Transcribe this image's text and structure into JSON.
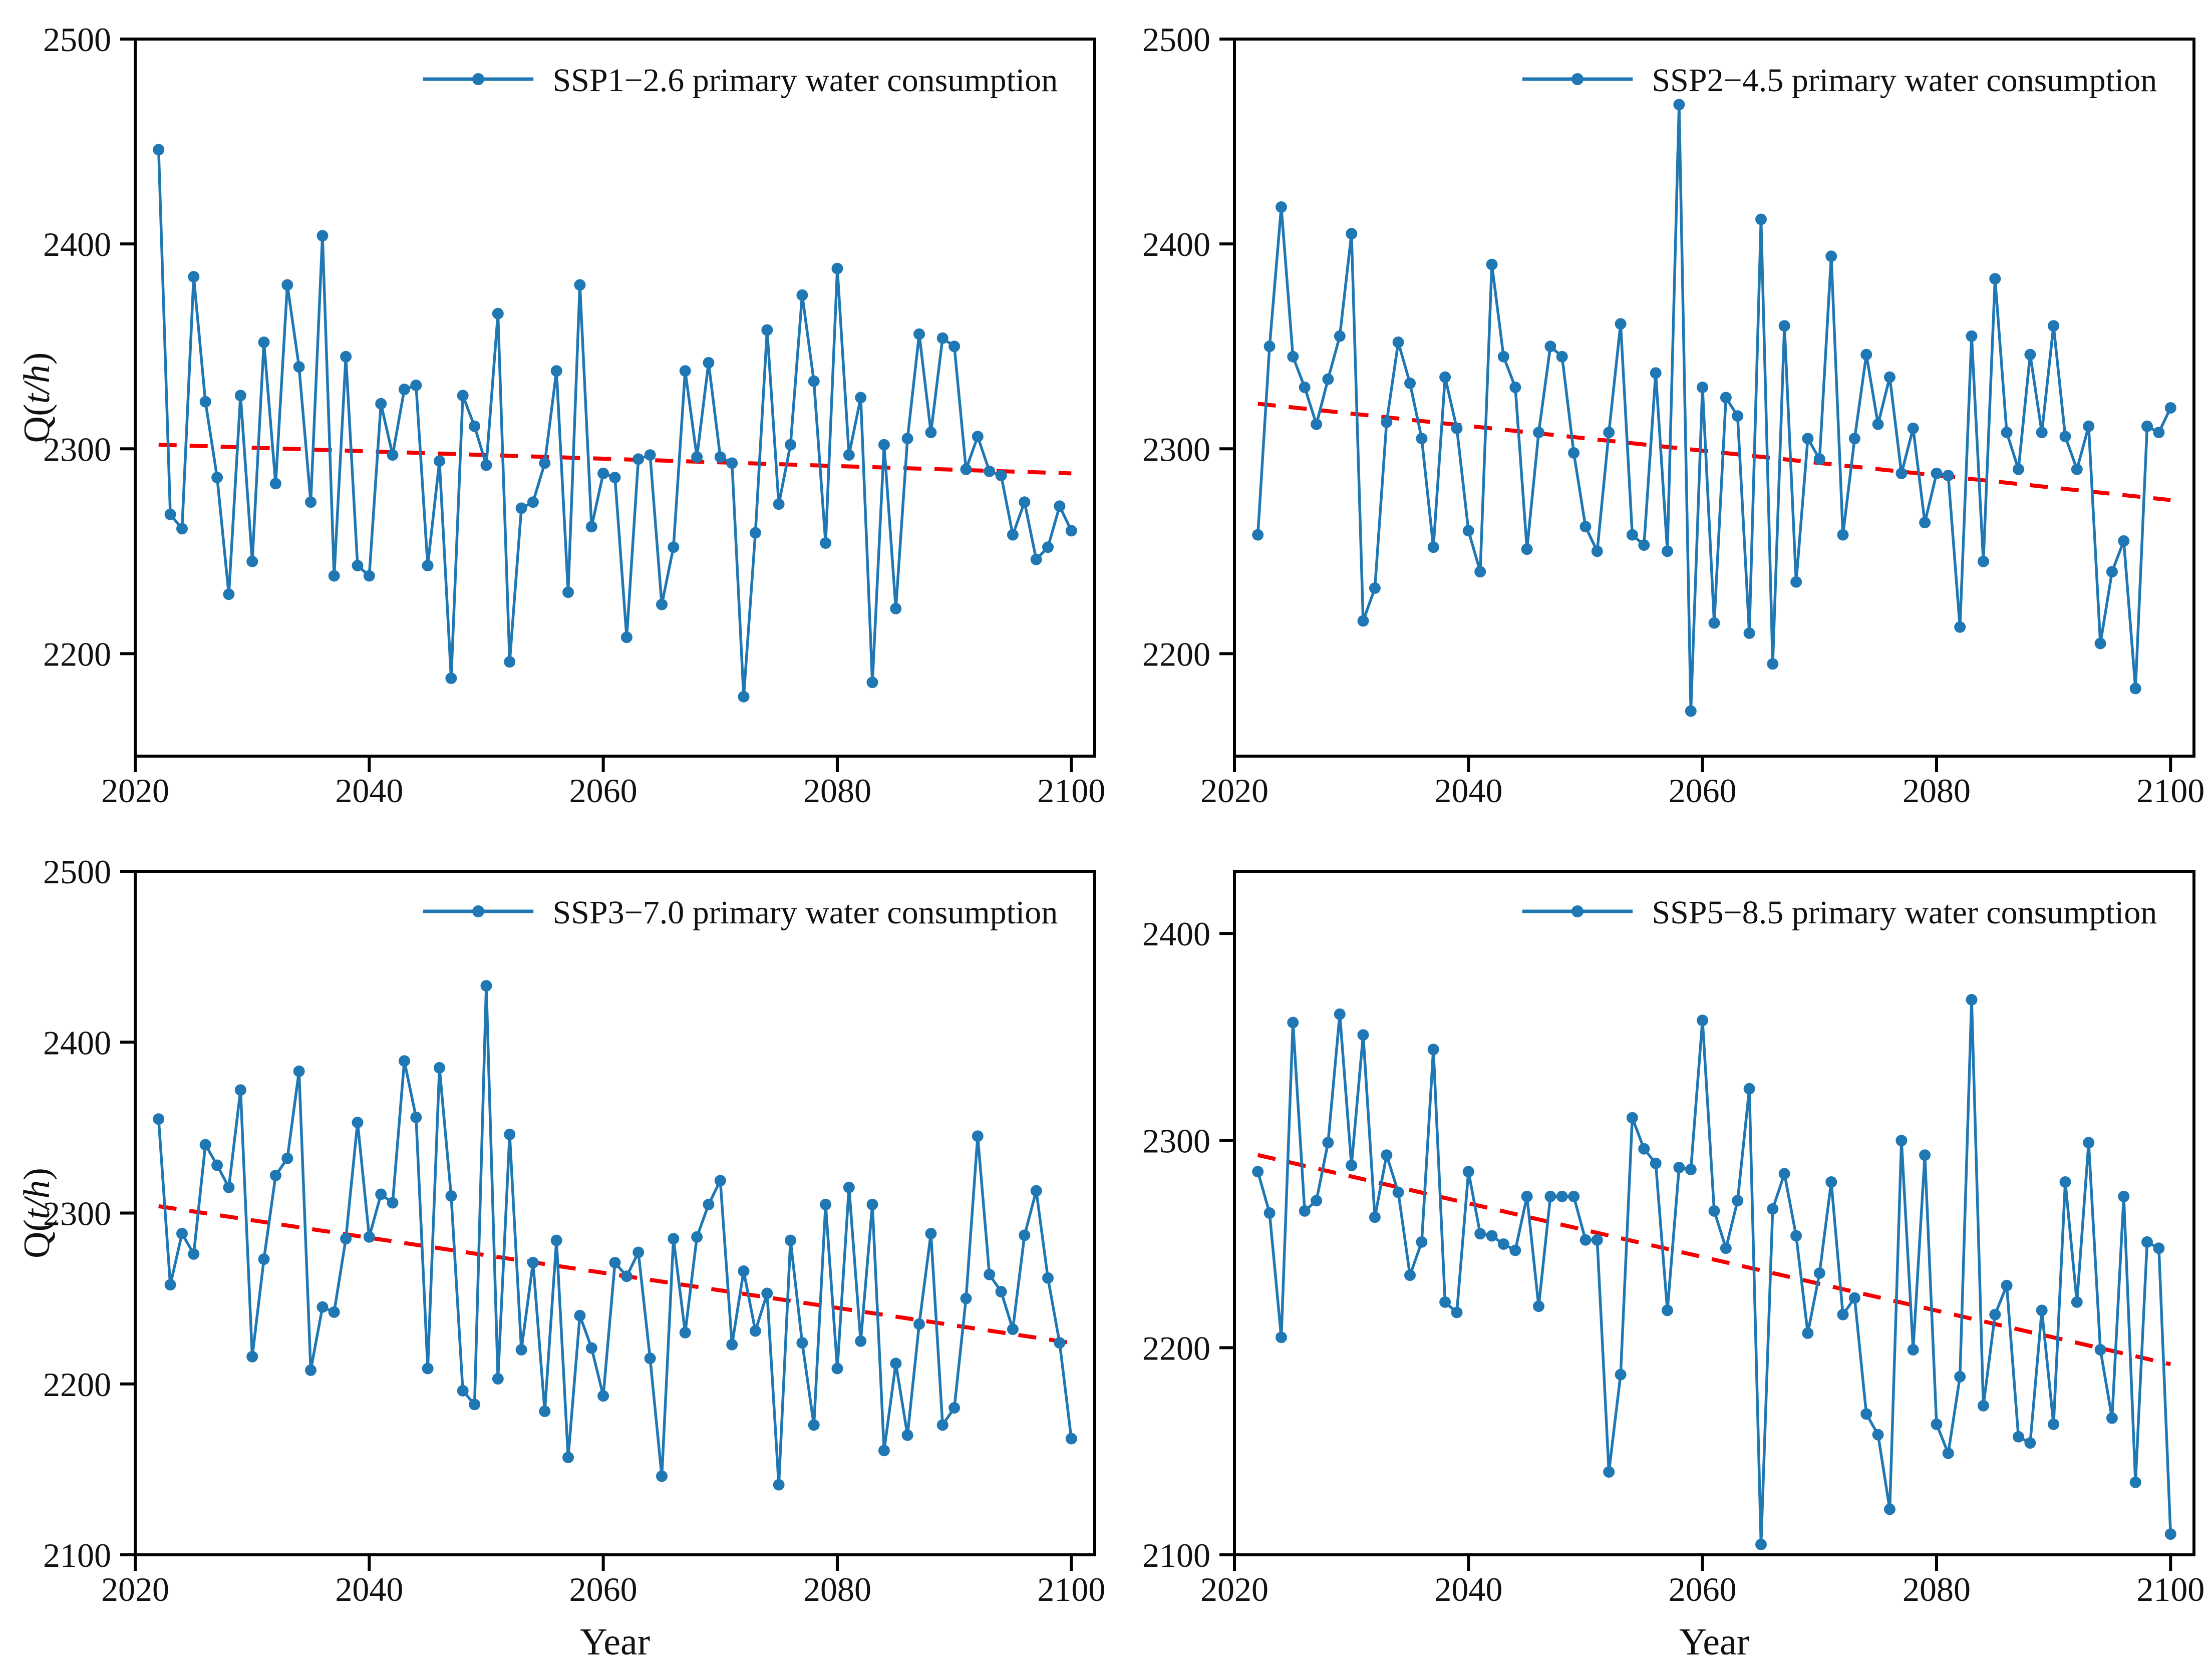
{
  "figure": {
    "background": "#ffffff",
    "series_color": "#1f77b4",
    "trend_color": "#f40000",
    "axis_color": "#000000",
    "text_color": "#111111"
  },
  "chart_data": {
    "type": "line",
    "title": "",
    "xlabel": "Year",
    "ylabel": "Q(t/h)",
    "ylabel_plain": "Q(t/h)",
    "x_ticks": [
      2020,
      2040,
      2060,
      2080,
      2100
    ],
    "xlim": [
      2020,
      2102
    ],
    "grid": false,
    "legend_position": "top-right-inside",
    "marker": "circle",
    "trend_style": "dashed",
    "x": [
      2022,
      2023,
      2024,
      2025,
      2026,
      2027,
      2028,
      2029,
      2030,
      2031,
      2032,
      2033,
      2034,
      2035,
      2036,
      2037,
      2038,
      2039,
      2040,
      2041,
      2042,
      2043,
      2044,
      2045,
      2046,
      2047,
      2048,
      2049,
      2050,
      2051,
      2052,
      2053,
      2054,
      2055,
      2056,
      2057,
      2058,
      2059,
      2060,
      2061,
      2062,
      2063,
      2064,
      2065,
      2066,
      2067,
      2068,
      2069,
      2070,
      2071,
      2072,
      2073,
      2074,
      2075,
      2076,
      2077,
      2078,
      2079,
      2080,
      2081,
      2082,
      2083,
      2084,
      2085,
      2086,
      2087,
      2088,
      2089,
      2090,
      2091,
      2092,
      2093,
      2094,
      2095,
      2096,
      2097,
      2098,
      2099,
      2100
    ],
    "panels": [
      {
        "id": "ssp1-26",
        "legend": "SSP1−2.6 primary water consumption",
        "ylim": [
          2150,
          2500
        ],
        "y_ticks": [
          2200,
          2300,
          2400,
          2500
        ],
        "show_ylabel": true,
        "show_xlabel": false,
        "trend": {
          "start_year": 2022,
          "end_year": 2100,
          "start_value": 2302,
          "end_value": 2288
        },
        "values": [
          2446,
          2268,
          2261,
          2384,
          2323,
          2286,
          2229,
          2326,
          2245,
          2352,
          2283,
          2380,
          2340,
          2274,
          2404,
          2238,
          2345,
          2243,
          2238,
          2322,
          2297,
          2329,
          2331,
          2243,
          2294,
          2188,
          2326,
          2311,
          2292,
          2366,
          2196,
          2271,
          2274,
          2293,
          2338,
          2230,
          2380,
          2262,
          2288,
          2286,
          2208,
          2295,
          2297,
          2224,
          2252,
          2338,
          2296,
          2342,
          2296,
          2293,
          2179,
          2259,
          2358,
          2273,
          2302,
          2375,
          2333,
          2254,
          2388,
          2297,
          2325,
          2186,
          2302,
          2222,
          2305,
          2356,
          2308,
          2354,
          2350,
          2290,
          2306,
          2289,
          2287,
          2258,
          2274,
          2246,
          2252,
          2272,
          2260
        ]
      },
      {
        "id": "ssp2-45",
        "legend": "SSP2−4.5 primary water consumption",
        "ylim": [
          2150,
          2500
        ],
        "y_ticks": [
          2200,
          2300,
          2400,
          2500
        ],
        "show_ylabel": false,
        "show_xlabel": false,
        "trend": {
          "start_year": 2022,
          "end_year": 2100,
          "start_value": 2322,
          "end_value": 2275
        },
        "values": [
          2258,
          2350,
          2418,
          2345,
          2330,
          2312,
          2334,
          2355,
          2405,
          2216,
          2232,
          2313,
          2352,
          2332,
          2305,
          2252,
          2335,
          2310,
          2260,
          2240,
          2390,
          2345,
          2330,
          2251,
          2308,
          2350,
          2345,
          2298,
          2262,
          2250,
          2308,
          2361,
          2258,
          2253,
          2337,
          2250,
          2468,
          2172,
          2330,
          2215,
          2325,
          2316,
          2210,
          2412,
          2195,
          2360,
          2235,
          2305,
          2295,
          2394,
          2258,
          2305,
          2346,
          2312,
          2335,
          2288,
          2310,
          2264,
          2288,
          2287,
          2213,
          2355,
          2245,
          2383,
          2308,
          2290,
          2346,
          2308,
          2360,
          2306,
          2290,
          2311,
          2205,
          2240,
          2255,
          2183,
          2311,
          2308,
          2320
        ]
      },
      {
        "id": "ssp3-70",
        "legend": "SSP3−7.0 primary water consumption",
        "ylim": [
          2100,
          2500
        ],
        "y_ticks": [
          2100,
          2200,
          2300,
          2400,
          2500
        ],
        "show_ylabel": true,
        "show_xlabel": true,
        "trend": {
          "start_year": 2022,
          "end_year": 2100,
          "start_value": 2304,
          "end_value": 2224
        },
        "values": [
          2355,
          2258,
          2288,
          2276,
          2340,
          2328,
          2315,
          2372,
          2216,
          2273,
          2322,
          2332,
          2383,
          2208,
          2245,
          2242,
          2285,
          2353,
          2286,
          2311,
          2306,
          2389,
          2356,
          2209,
          2385,
          2310,
          2196,
          2188,
          2433,
          2203,
          2346,
          2220,
          2271,
          2184,
          2284,
          2157,
          2240,
          2221,
          2193,
          2271,
          2263,
          2277,
          2215,
          2146,
          2285,
          2230,
          2286,
          2305,
          2319,
          2223,
          2266,
          2231,
          2253,
          2141,
          2284,
          2224,
          2176,
          2305,
          2209,
          2315,
          2225,
          2305,
          2161,
          2212,
          2170,
          2235,
          2288,
          2176,
          2186,
          2250,
          2345,
          2264,
          2254,
          2232,
          2287,
          2313,
          2262,
          2224,
          2168
        ]
      },
      {
        "id": "ssp5-85",
        "legend": "SSP5−8.5 primary water consumption",
        "ylim": [
          2100,
          2430
        ],
        "y_ticks": [
          2100,
          2200,
          2300,
          2400
        ],
        "show_ylabel": false,
        "show_xlabel": true,
        "trend": {
          "start_year": 2022,
          "end_year": 2100,
          "start_value": 2293,
          "end_value": 2192
        },
        "values": [
          2285,
          2265,
          2205,
          2357,
          2266,
          2271,
          2299,
          2361,
          2288,
          2351,
          2263,
          2293,
          2275,
          2235,
          2251,
          2344,
          2222,
          2217,
          2285,
          2255,
          2254,
          2250,
          2247,
          2273,
          2220,
          2273,
          2273,
          2273,
          2252,
          2252,
          2140,
          2187,
          2311,
          2296,
          2289,
          2218,
          2287,
          2286,
          2358,
          2266,
          2248,
          2271,
          2325,
          2105,
          2267,
          2284,
          2254,
          2207,
          2236,
          2280,
          2216,
          2224,
          2168,
          2158,
          2122,
          2300,
          2199,
          2293,
          2163,
          2149,
          2186,
          2368,
          2172,
          2216,
          2230,
          2157,
          2154,
          2218,
          2163,
          2280,
          2222,
          2299,
          2199,
          2166,
          2273,
          2135,
          2251,
          2248,
          2110
        ]
      }
    ]
  }
}
